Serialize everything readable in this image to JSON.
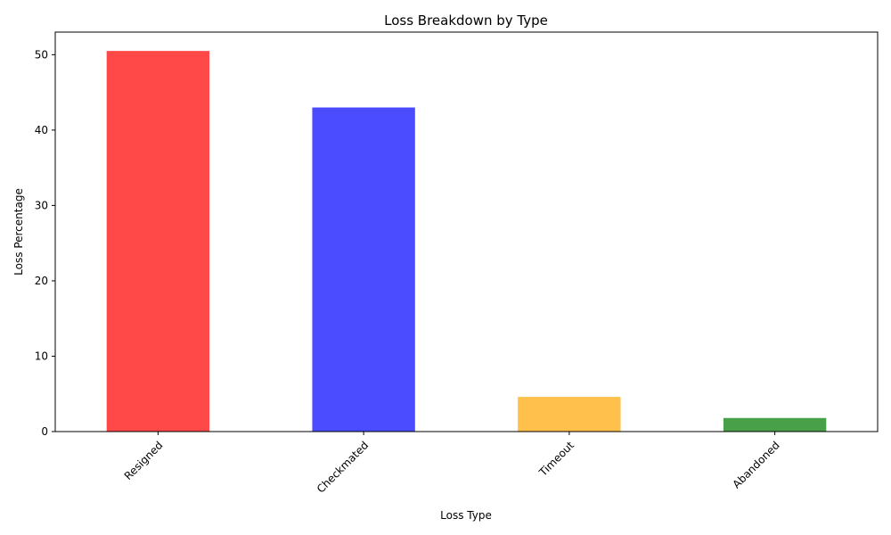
{
  "chart_data": {
    "type": "bar",
    "title": "Loss Breakdown by Type",
    "xlabel": "Loss Type",
    "ylabel": "Loss Percentage",
    "categories": [
      "Resigned",
      "Checkmated",
      "Timeout",
      "Abandoned"
    ],
    "values": [
      50.5,
      43.0,
      4.6,
      1.8
    ],
    "colors": [
      "#ff4848",
      "#4b4bff",
      "#ffc04c",
      "#48a048"
    ],
    "ylim": [
      0,
      53
    ],
    "yticks": [
      0,
      10,
      20,
      30,
      40,
      50
    ],
    "grid": false,
    "legend": "none"
  }
}
